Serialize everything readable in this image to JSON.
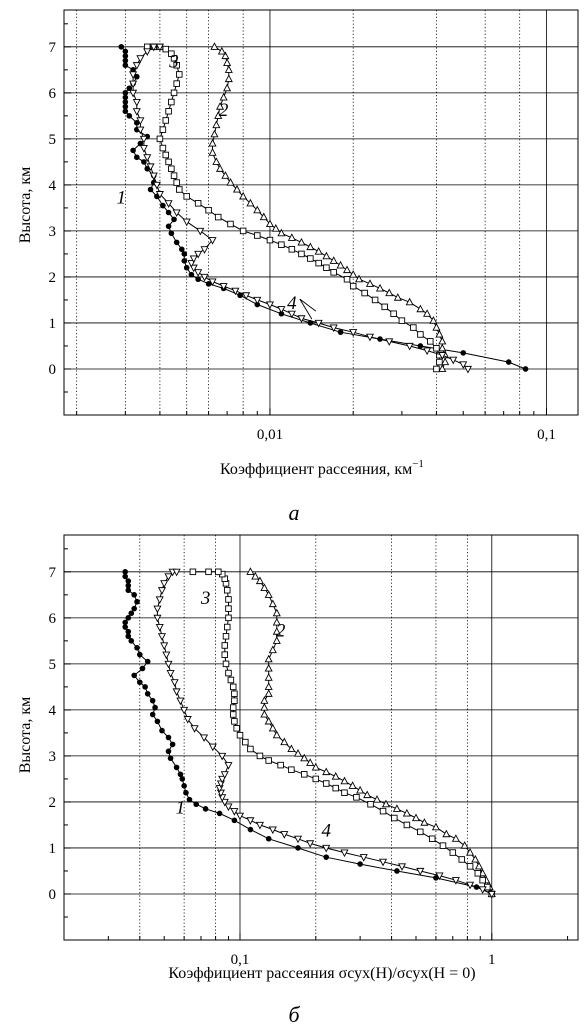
{
  "chart_data": [
    {
      "panel_label": "а",
      "type": "line",
      "xlabel": "Коэффициент рассеяния, км",
      "xlabel_sup": "−1",
      "ylabel": "Высота, км",
      "xscale": "log",
      "xlim": [
        0.0018,
        0.13
      ],
      "ylim": [
        -1,
        7.8
      ],
      "x_tick_labels": [
        {
          "value": 0.01,
          "label": "0,01"
        },
        {
          "value": 0.1,
          "label": "0,1"
        }
      ],
      "y_tick_labels": [
        {
          "value": 0,
          "label": "0"
        },
        {
          "value": 1,
          "label": "1"
        },
        {
          "value": 2,
          "label": "2"
        },
        {
          "value": 3,
          "label": "3"
        },
        {
          "value": 4,
          "label": "4"
        },
        {
          "value": 5,
          "label": "5"
        },
        {
          "value": 6,
          "label": "6"
        },
        {
          "value": 7,
          "label": "7"
        }
      ],
      "grid": {
        "horizontal": [
          0,
          1,
          2,
          3,
          4,
          5,
          6,
          7
        ],
        "vertical_solid": [
          0.01,
          0.1
        ],
        "vertical_dotted": [
          0.002,
          0.003,
          0.004,
          0.005,
          0.006,
          0.008,
          0.02,
          0.04,
          0.06,
          0.08
        ]
      },
      "series": [
        {
          "name": "1",
          "marker": "circle-filled",
          "x": [
            0.084,
            0.073,
            0.05,
            0.035,
            0.025,
            0.018,
            0.014,
            0.011,
            0.009,
            0.0078,
            0.0068,
            0.006,
            0.0055,
            0.0052,
            0.005,
            0.0049,
            0.0049,
            0.0048,
            0.0046,
            0.0044,
            0.0043,
            0.0045,
            0.0043,
            0.0041,
            0.0039,
            0.0037,
            0.0038,
            0.0038,
            0.0036,
            0.0035,
            0.0033,
            0.0032,
            0.0034,
            0.0036,
            0.0033,
            0.0033,
            0.0031,
            0.003,
            0.003,
            0.003,
            0.003,
            0.003,
            0.0031,
            0.0032,
            0.0033,
            0.0032,
            0.003,
            0.003,
            0.003,
            0.003,
            0.0029
          ],
          "y": [
            0,
            0.15,
            0.35,
            0.5,
            0.65,
            0.8,
            1.0,
            1.2,
            1.4,
            1.6,
            1.75,
            1.85,
            1.95,
            2.05,
            2.2,
            2.35,
            2.5,
            2.6,
            2.75,
            2.95,
            3.1,
            3.25,
            3.4,
            3.55,
            3.75,
            3.9,
            4.05,
            4.2,
            4.35,
            4.5,
            4.6,
            4.75,
            4.9,
            5.05,
            5.2,
            5.35,
            5.5,
            5.6,
            5.7,
            5.8,
            5.9,
            6.0,
            6.1,
            6.2,
            6.35,
            6.5,
            6.6,
            6.7,
            6.8,
            6.9,
            7.0
          ]
        },
        {
          "name": "2",
          "marker": "triangle-up",
          "x": [
            0.042,
            0.043,
            0.043,
            0.042,
            0.042,
            0.041,
            0.04,
            0.039,
            0.037,
            0.035,
            0.032,
            0.029,
            0.027,
            0.025,
            0.023,
            0.021,
            0.02,
            0.019,
            0.018,
            0.017,
            0.016,
            0.015,
            0.014,
            0.013,
            0.012,
            0.011,
            0.0105,
            0.01,
            0.0095,
            0.009,
            0.0085,
            0.008,
            0.0076,
            0.0072,
            0.0069,
            0.0066,
            0.0064,
            0.0062,
            0.0062,
            0.0063,
            0.0064,
            0.0065,
            0.0066,
            0.0068,
            0.007,
            0.0071,
            0.0071,
            0.007,
            0.0069,
            0.0067,
            0.0063
          ],
          "y": [
            0,
            0.15,
            0.3,
            0.45,
            0.6,
            0.75,
            0.9,
            1.05,
            1.2,
            1.3,
            1.45,
            1.55,
            1.65,
            1.75,
            1.85,
            1.95,
            2.05,
            2.15,
            2.25,
            2.35,
            2.45,
            2.55,
            2.65,
            2.75,
            2.85,
            2.95,
            3.05,
            3.15,
            3.3,
            3.45,
            3.6,
            3.75,
            3.9,
            4.05,
            4.2,
            4.35,
            4.5,
            4.7,
            4.9,
            5.1,
            5.3,
            5.5,
            5.7,
            5.9,
            6.1,
            6.3,
            6.5,
            6.65,
            6.8,
            6.9,
            7.0
          ]
        },
        {
          "name": "3",
          "marker": "square",
          "x": [
            0.04,
            0.041,
            0.041,
            0.04,
            0.038,
            0.035,
            0.033,
            0.03,
            0.028,
            0.026,
            0.024,
            0.022,
            0.02,
            0.019,
            0.017,
            0.016,
            0.015,
            0.014,
            0.013,
            0.012,
            0.011,
            0.01,
            0.009,
            0.008,
            0.0072,
            0.0065,
            0.006,
            0.0055,
            0.005,
            0.0047,
            0.0046,
            0.0045,
            0.0044,
            0.0043,
            0.0042,
            0.0041,
            0.004,
            0.0041,
            0.0042,
            0.0043,
            0.0044,
            0.0045,
            0.0046,
            0.0047,
            0.0046,
            0.0045,
            0.0044,
            0.0042,
            0.004,
            0.0038,
            0.0036
          ],
          "y": [
            0,
            0.15,
            0.3,
            0.45,
            0.6,
            0.75,
            0.9,
            1.05,
            1.2,
            1.35,
            1.5,
            1.65,
            1.8,
            1.95,
            2.1,
            2.2,
            2.3,
            2.4,
            2.5,
            2.6,
            2.7,
            2.8,
            2.9,
            3.0,
            3.15,
            3.3,
            3.45,
            3.6,
            3.75,
            3.9,
            4.05,
            4.2,
            4.35,
            4.5,
            4.65,
            4.8,
            5.0,
            5.2,
            5.4,
            5.6,
            5.8,
            6.0,
            6.2,
            6.4,
            6.6,
            6.75,
            6.85,
            6.95,
            7.0,
            7.0,
            7.0
          ]
        },
        {
          "name": "4",
          "marker": "triangle-down",
          "x": [
            0.052,
            0.05,
            0.046,
            0.042,
            0.037,
            0.032,
            0.027,
            0.023,
            0.02,
            0.017,
            0.015,
            0.013,
            0.012,
            0.011,
            0.01,
            0.009,
            0.0082,
            0.0075,
            0.0068,
            0.0062,
            0.0058,
            0.0055,
            0.0053,
            0.0052,
            0.0053,
            0.0055,
            0.0058,
            0.0062,
            0.0056,
            0.005,
            0.0046,
            0.0043,
            0.004,
            0.0039,
            0.0038,
            0.0037,
            0.0036,
            0.0035,
            0.0035,
            0.0034,
            0.0034,
            0.0033,
            0.0033,
            0.0032,
            0.0032,
            0.0032,
            0.0033,
            0.0034,
            0.0036,
            0.0038,
            0.004
          ],
          "y": [
            0,
            0.1,
            0.2,
            0.3,
            0.4,
            0.5,
            0.6,
            0.7,
            0.8,
            0.9,
            1.0,
            1.1,
            1.2,
            1.3,
            1.4,
            1.5,
            1.6,
            1.7,
            1.8,
            1.9,
            2.0,
            2.1,
            2.2,
            2.3,
            2.4,
            2.5,
            2.6,
            2.8,
            3.0,
            3.2,
            3.4,
            3.6,
            3.8,
            4.0,
            4.2,
            4.4,
            4.6,
            4.8,
            5.0,
            5.2,
            5.4,
            5.6,
            5.8,
            6.0,
            6.2,
            6.4,
            6.6,
            6.75,
            6.9,
            7.0,
            7.0
          ]
        }
      ],
      "annotations": [
        {
          "text": "1",
          "x": 0.0029,
          "y": 3.6
        },
        {
          "text": "2",
          "x": 0.0068,
          "y": 5.5
        },
        {
          "text": "3",
          "x": 0.0045,
          "y": 6.55
        },
        {
          "text": "4",
          "x": 0.012,
          "y": 1.3
        }
      ]
    },
    {
      "panel_label": "б",
      "type": "line",
      "xlabel": "Коэффициент рассеяния σсух(H)/σсух(H = 0)",
      "ylabel": "Высота, км",
      "xscale": "log",
      "xlim": [
        0.02,
        2.2
      ],
      "ylim": [
        -1,
        7.8
      ],
      "x_tick_labels": [
        {
          "value": 0.1,
          "label": "0,1"
        },
        {
          "value": 1,
          "label": "1"
        }
      ],
      "y_tick_labels": [
        {
          "value": 0,
          "label": "0"
        },
        {
          "value": 1,
          "label": "1"
        },
        {
          "value": 2,
          "label": "2"
        },
        {
          "value": 3,
          "label": "3"
        },
        {
          "value": 4,
          "label": "4"
        },
        {
          "value": 5,
          "label": "5"
        },
        {
          "value": 6,
          "label": "6"
        },
        {
          "value": 7,
          "label": "7"
        }
      ],
      "grid": {
        "horizontal": [
          0,
          1,
          2,
          3,
          4,
          5,
          6,
          7
        ],
        "vertical_solid": [
          0.1,
          1
        ],
        "vertical_dotted": [
          0.04,
          0.06,
          0.08,
          0.2,
          0.4,
          0.6,
          0.8
        ]
      },
      "series": [
        {
          "name": "1",
          "marker": "circle-filled",
          "x": [
            1.0,
            0.87,
            0.6,
            0.42,
            0.3,
            0.22,
            0.17,
            0.13,
            0.11,
            0.095,
            0.083,
            0.073,
            0.067,
            0.063,
            0.061,
            0.06,
            0.059,
            0.058,
            0.056,
            0.053,
            0.052,
            0.054,
            0.052,
            0.049,
            0.047,
            0.045,
            0.046,
            0.045,
            0.043,
            0.042,
            0.04,
            0.038,
            0.041,
            0.043,
            0.04,
            0.039,
            0.037,
            0.036,
            0.036,
            0.035,
            0.035,
            0.036,
            0.037,
            0.038,
            0.039,
            0.038,
            0.036,
            0.036,
            0.036,
            0.035,
            0.035
          ],
          "y": [
            0,
            0.15,
            0.35,
            0.5,
            0.65,
            0.8,
            1.0,
            1.2,
            1.4,
            1.6,
            1.75,
            1.85,
            1.95,
            2.05,
            2.2,
            2.35,
            2.5,
            2.6,
            2.75,
            2.95,
            3.1,
            3.25,
            3.4,
            3.55,
            3.75,
            3.9,
            4.05,
            4.2,
            4.35,
            4.5,
            4.6,
            4.75,
            4.9,
            5.05,
            5.2,
            5.35,
            5.5,
            5.6,
            5.7,
            5.8,
            5.9,
            6.0,
            6.1,
            6.2,
            6.35,
            6.5,
            6.6,
            6.7,
            6.8,
            6.9,
            7.0
          ]
        },
        {
          "name": "2",
          "marker": "triangle-up",
          "x": [
            1.0,
            0.98,
            0.95,
            0.92,
            0.89,
            0.86,
            0.82,
            0.78,
            0.72,
            0.66,
            0.6,
            0.54,
            0.5,
            0.46,
            0.42,
            0.38,
            0.35,
            0.32,
            0.3,
            0.28,
            0.26,
            0.24,
            0.22,
            0.2,
            0.19,
            0.18,
            0.17,
            0.16,
            0.15,
            0.14,
            0.135,
            0.13,
            0.125,
            0.125,
            0.125,
            0.13,
            0.13,
            0.13,
            0.13,
            0.13,
            0.135,
            0.14,
            0.14,
            0.14,
            0.14,
            0.135,
            0.13,
            0.125,
            0.12,
            0.115,
            0.11
          ],
          "y": [
            0,
            0.15,
            0.3,
            0.45,
            0.6,
            0.75,
            0.9,
            1.05,
            1.2,
            1.3,
            1.45,
            1.55,
            1.65,
            1.75,
            1.85,
            1.95,
            2.05,
            2.15,
            2.25,
            2.35,
            2.45,
            2.55,
            2.65,
            2.75,
            2.85,
            2.95,
            3.05,
            3.15,
            3.3,
            3.45,
            3.6,
            3.75,
            3.9,
            4.05,
            4.2,
            4.35,
            4.5,
            4.7,
            4.9,
            5.1,
            5.3,
            5.5,
            5.7,
            5.9,
            6.1,
            6.3,
            6.5,
            6.65,
            6.8,
            6.9,
            7.0
          ]
        },
        {
          "name": "3",
          "marker": "square",
          "x": [
            1.0,
            0.96,
            0.92,
            0.88,
            0.82,
            0.76,
            0.7,
            0.64,
            0.58,
            0.52,
            0.46,
            0.41,
            0.37,
            0.33,
            0.29,
            0.26,
            0.24,
            0.22,
            0.2,
            0.18,
            0.16,
            0.145,
            0.13,
            0.12,
            0.11,
            0.105,
            0.1,
            0.097,
            0.095,
            0.094,
            0.094,
            0.095,
            0.095,
            0.094,
            0.092,
            0.09,
            0.088,
            0.087,
            0.087,
            0.088,
            0.089,
            0.09,
            0.09,
            0.09,
            0.089,
            0.088,
            0.087,
            0.085,
            0.082,
            0.075,
            0.065
          ],
          "y": [
            0,
            0.15,
            0.3,
            0.45,
            0.6,
            0.75,
            0.9,
            1.05,
            1.2,
            1.35,
            1.5,
            1.65,
            1.8,
            1.95,
            2.1,
            2.2,
            2.3,
            2.4,
            2.5,
            2.6,
            2.7,
            2.8,
            2.9,
            3.0,
            3.15,
            3.3,
            3.45,
            3.6,
            3.75,
            3.9,
            4.05,
            4.2,
            4.35,
            4.5,
            4.65,
            4.8,
            5.0,
            5.2,
            5.4,
            5.6,
            5.8,
            6.0,
            6.2,
            6.4,
            6.6,
            6.75,
            6.85,
            6.95,
            7.0,
            7.0,
            7.0
          ]
        },
        {
          "name": "4",
          "marker": "triangle-down",
          "x": [
            1.0,
            0.92,
            0.82,
            0.72,
            0.62,
            0.52,
            0.44,
            0.37,
            0.31,
            0.26,
            0.22,
            0.19,
            0.17,
            0.15,
            0.135,
            0.12,
            0.11,
            0.1,
            0.095,
            0.09,
            0.087,
            0.085,
            0.084,
            0.083,
            0.084,
            0.085,
            0.087,
            0.09,
            0.085,
            0.078,
            0.072,
            0.066,
            0.062,
            0.06,
            0.058,
            0.056,
            0.055,
            0.053,
            0.052,
            0.051,
            0.05,
            0.049,
            0.048,
            0.047,
            0.047,
            0.048,
            0.049,
            0.05,
            0.052,
            0.054,
            0.056
          ],
          "y": [
            0,
            0.1,
            0.2,
            0.3,
            0.4,
            0.5,
            0.6,
            0.7,
            0.8,
            0.9,
            1.0,
            1.1,
            1.2,
            1.3,
            1.4,
            1.5,
            1.6,
            1.7,
            1.8,
            1.9,
            2.0,
            2.1,
            2.2,
            2.3,
            2.4,
            2.5,
            2.6,
            2.8,
            3.0,
            3.2,
            3.4,
            3.6,
            3.8,
            4.0,
            4.2,
            4.4,
            4.6,
            4.8,
            5.0,
            5.2,
            5.4,
            5.6,
            5.8,
            6.0,
            6.2,
            6.4,
            6.6,
            6.75,
            6.9,
            7.0,
            7.0
          ]
        }
      ],
      "annotations": [
        {
          "text": "1",
          "x": 0.058,
          "y": 1.75
        },
        {
          "text": "2",
          "x": 0.145,
          "y": 5.6
        },
        {
          "text": "3",
          "x": 0.073,
          "y": 6.3
        },
        {
          "text": "4",
          "x": 0.22,
          "y": 1.25
        }
      ]
    }
  ]
}
